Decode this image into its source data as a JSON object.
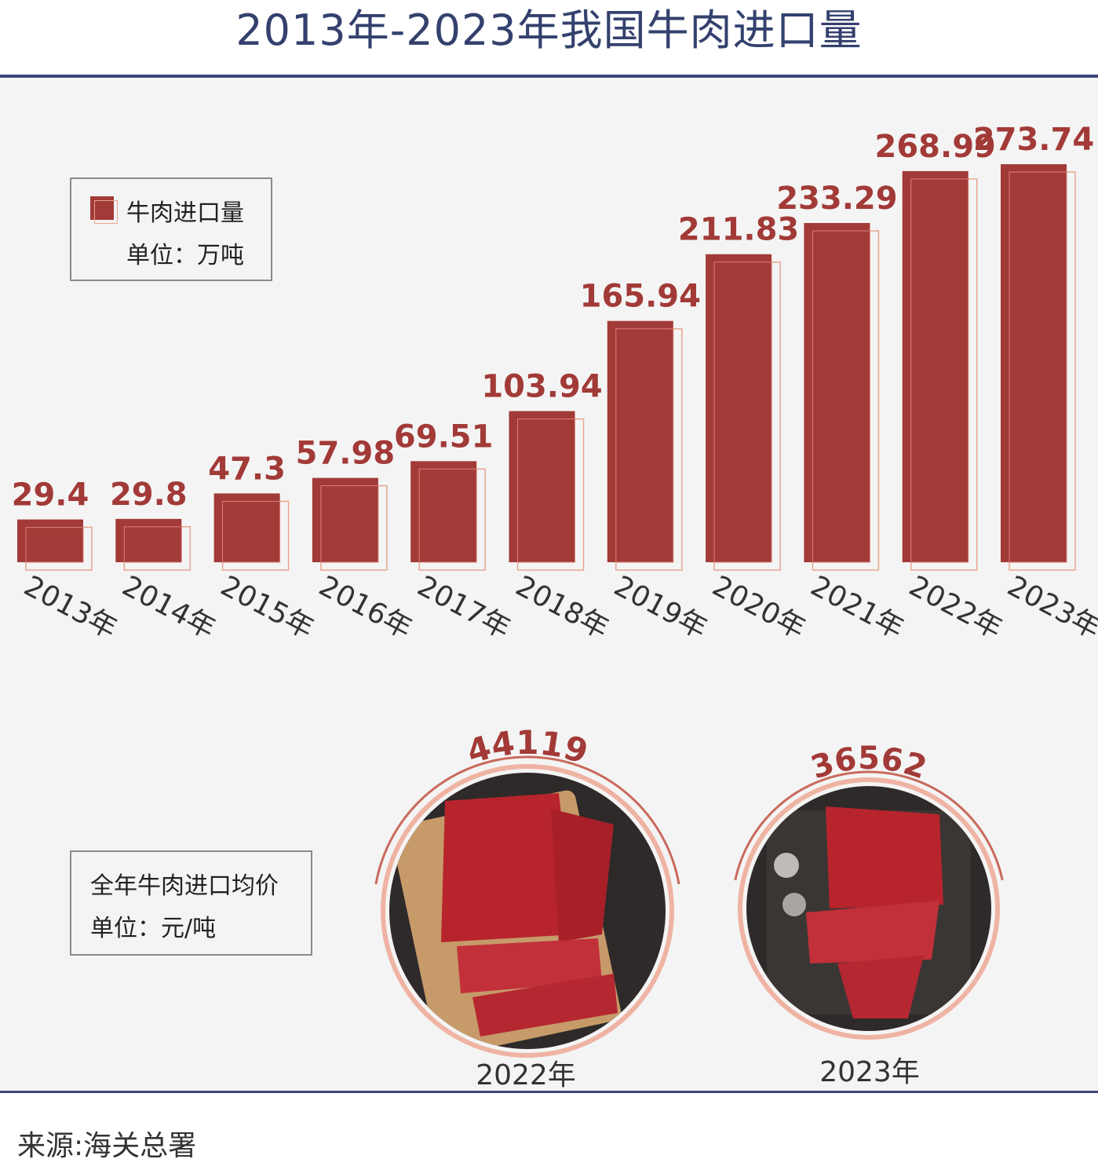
{
  "title": "2013年-2023年我国牛肉进口量",
  "legend": {
    "series": "牛肉进口量",
    "unit": "单位：万吨"
  },
  "chart_data": {
    "type": "bar",
    "title": "2013年-2023年我国牛肉进口量",
    "categories": [
      "2013年",
      "2014年",
      "2015年",
      "2016年",
      "2017年",
      "2018年",
      "2019年",
      "2020年",
      "2021年",
      "2022年",
      "2023年"
    ],
    "series": [
      {
        "name": "牛肉进口量",
        "values": [
          29.4,
          29.8,
          47.3,
          57.98,
          69.51,
          103.94,
          165.94,
          211.83,
          233.29,
          268.99,
          273.74
        ]
      }
    ],
    "value_labels": [
      "29.4",
      "29.8",
      "47.3",
      "57.98",
      "69.51",
      "103.94",
      "165.94",
      "211.83",
      "233.29",
      "268.99",
      "273.74"
    ],
    "unit": "单位：万吨",
    "ylim": [
      0,
      290
    ],
    "grid": false,
    "legend_position": "top-left",
    "bar_color": "#a23a37"
  },
  "price": {
    "label": "全年牛肉进口均价",
    "unit": "单位：元/吨",
    "items": [
      {
        "year": "2022年",
        "value": "44119"
      },
      {
        "year": "2023年",
        "value": "36562"
      }
    ]
  },
  "source": "来源:海关总署",
  "colors": {
    "title": "#34416e",
    "bar": "#a23a37",
    "accent": "#e8a590",
    "rule": "#3c4678"
  }
}
